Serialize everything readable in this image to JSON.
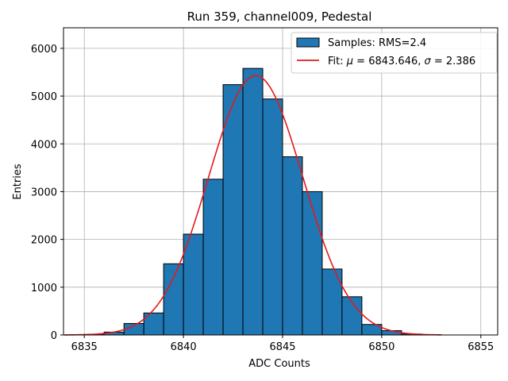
{
  "chart_data": {
    "type": "bar",
    "title": "Run 359, channel009, Pedestal",
    "xlabel": "ADC Counts",
    "ylabel": "Entries",
    "xlim": [
      6833.95,
      6855.85
    ],
    "ylim": [
      0,
      6430
    ],
    "grid": true,
    "xticks": [
      6835,
      6840,
      6845,
      6850,
      6855
    ],
    "yticks": [
      0,
      1000,
      2000,
      3000,
      4000,
      5000,
      6000
    ],
    "histogram": {
      "name": "Samples: RMS=2.4",
      "color": "#1f77b4",
      "edge_color": "#000000",
      "bin_width": 1,
      "bin_starts": [
        6835,
        6836,
        6837,
        6838,
        6839,
        6840,
        6841,
        6842,
        6843,
        6844,
        6845,
        6846,
        6847,
        6848,
        6849,
        6850,
        6851,
        6852
      ],
      "values": [
        10,
        60,
        240,
        460,
        1490,
        2110,
        3260,
        5240,
        5580,
        4940,
        3730,
        3000,
        1380,
        800,
        220,
        90,
        20,
        5
      ]
    },
    "fit": {
      "name": "Fit: μ = 6843.646, σ = 2.386",
      "color": "#e31a1c",
      "mu": 6843.646,
      "sigma": 2.386,
      "amplitude": 5430,
      "x_range": [
        6834,
        6853
      ]
    },
    "legend": {
      "position": "top-right",
      "hist_label_prefix": "Samples: RMS=",
      "hist_label_value": "2.4",
      "fit_label_prefix": "Fit: ",
      "fit_mu_symbol": "μ",
      "fit_mu_text": " = 6843.646, ",
      "fit_sigma_symbol": "σ",
      "fit_sigma_text": " = 2.386"
    }
  }
}
